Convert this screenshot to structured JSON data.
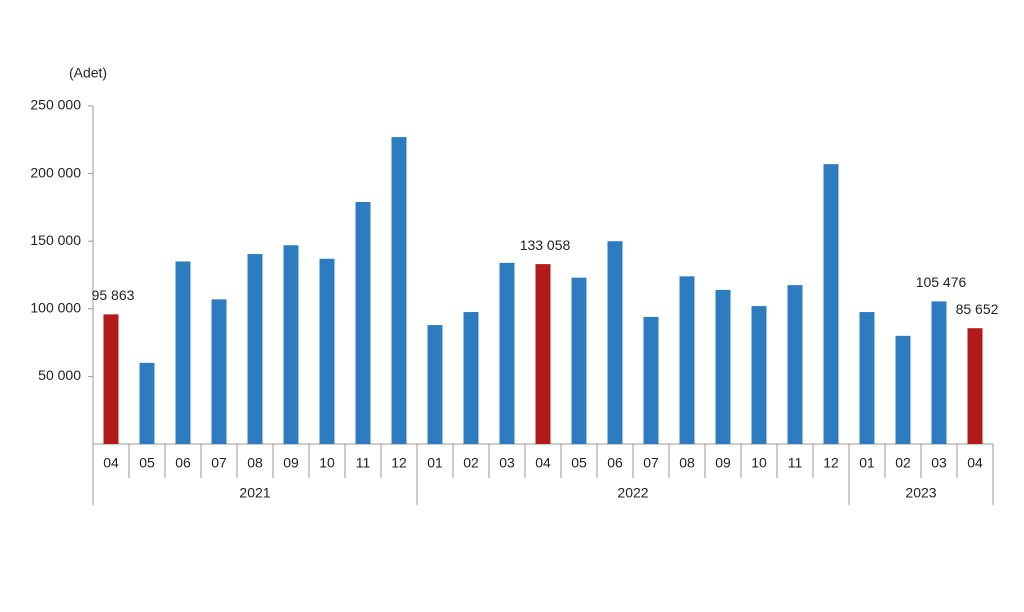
{
  "chart_data": {
    "type": "bar",
    "y_label": "(Adet)",
    "groups": [
      {
        "name": "2021",
        "categories": [
          "04",
          "05",
          "06",
          "07",
          "08",
          "09",
          "10",
          "11",
          "12"
        ]
      },
      {
        "name": "2022",
        "categories": [
          "01",
          "02",
          "03",
          "04",
          "05",
          "06",
          "07",
          "08",
          "09",
          "10",
          "11",
          "12"
        ]
      },
      {
        "name": "2023",
        "categories": [
          "01",
          "02",
          "03",
          "04"
        ]
      }
    ],
    "values": [
      95863,
      60000,
      135000,
      107000,
      140500,
      147000,
      137000,
      179000,
      227000,
      88000,
      97600,
      134000,
      133058,
      123000,
      150000,
      94000,
      124000,
      114000,
      102000,
      117500,
      207000,
      97600,
      80000,
      105476,
      85652
    ],
    "value_labels": [
      "95 863",
      null,
      null,
      null,
      null,
      null,
      null,
      null,
      null,
      null,
      null,
      null,
      "133 058",
      null,
      null,
      null,
      null,
      null,
      null,
      null,
      null,
      null,
      null,
      "105 476",
      "85 652"
    ],
    "colors": [
      "#b31b1b",
      "#2e7cc0",
      "#2e7cc0",
      "#2e7cc0",
      "#2e7cc0",
      "#2e7cc0",
      "#2e7cc0",
      "#2e7cc0",
      "#2e7cc0",
      "#2e7cc0",
      "#2e7cc0",
      "#2e7cc0",
      "#b31b1b",
      "#2e7cc0",
      "#2e7cc0",
      "#2e7cc0",
      "#2e7cc0",
      "#2e7cc0",
      "#2e7cc0",
      "#2e7cc0",
      "#2e7cc0",
      "#2e7cc0",
      "#2e7cc0",
      "#2e7cc0",
      "#b31b1b"
    ],
    "ylim": [
      0,
      250000
    ],
    "yticks": [
      {
        "value": 50000,
        "label": "50 000"
      },
      {
        "value": 100000,
        "label": "100 000"
      },
      {
        "value": 150000,
        "label": "150 000"
      },
      {
        "value": 200000,
        "label": "200 000"
      },
      {
        "value": 250000,
        "label": "250 000"
      }
    ],
    "grid": false
  }
}
